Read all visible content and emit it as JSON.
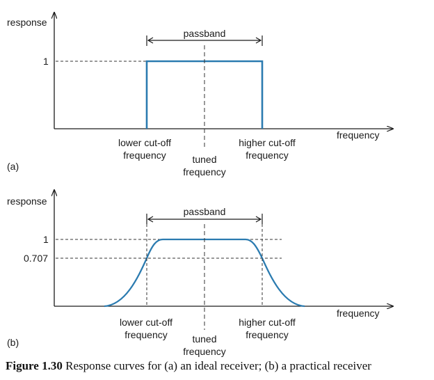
{
  "panel_a": {
    "tag": "(a)",
    "y_axis_label": "response",
    "x_axis_label": "frequency",
    "passband_label": "passband",
    "level_labels": [
      "1"
    ],
    "lower_label": [
      "lower cut-off",
      "frequency"
    ],
    "tuned_label": [
      "tuned",
      "frequency"
    ],
    "higher_label": [
      "higher cut-off",
      "frequency"
    ]
  },
  "panel_b": {
    "tag": "(b)",
    "y_axis_label": "response",
    "x_axis_label": "frequency",
    "passband_label": "passband",
    "level_labels": [
      "1",
      "0.707"
    ],
    "lower_label": [
      "lower cut-off",
      "frequency"
    ],
    "tuned_label": [
      "tuned",
      "frequency"
    ],
    "higher_label": [
      "higher cut-off",
      "frequency"
    ]
  },
  "caption": {
    "number": "Figure 1.30",
    "text": "Response curves for (a) an ideal receiver; (b) a practical receiver"
  },
  "colors": {
    "curve": "#2b7bb0",
    "axis": "#1a1a1a",
    "dashed": "#333333"
  }
}
